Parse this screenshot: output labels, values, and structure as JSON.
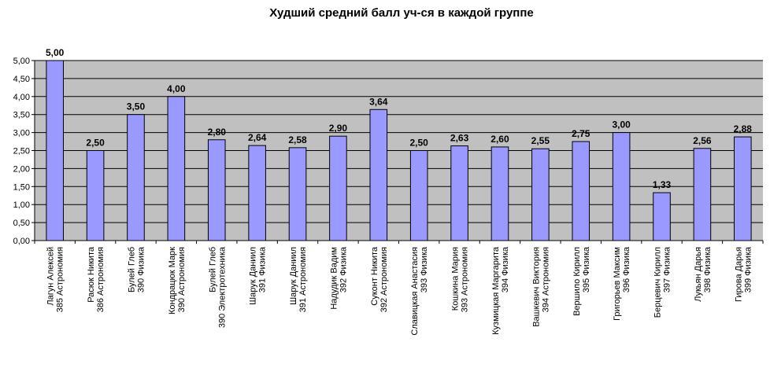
{
  "chart_data": {
    "type": "bar",
    "title": "Худший средний балл уч-ся в каждой группе",
    "xlabel": "",
    "ylabel": "",
    "ylim": [
      0,
      5
    ],
    "yticks": [
      "0,00",
      "0,50",
      "1,00",
      "1,50",
      "2,00",
      "2,50",
      "3,00",
      "3,50",
      "4,00",
      "4,50",
      "5,00"
    ],
    "grid": true,
    "categories": [
      [
        "Лагун Алексей",
        "385 Астрономия"
      ],
      [
        "Расюк Никита",
        "386 Астрономия"
      ],
      [
        "Булей Глеб",
        "390 Физика"
      ],
      [
        "Кондрацюк Марк",
        "390 Астрономия"
      ],
      [
        "Булей Глеб",
        "390 Электротехника"
      ],
      [
        "Шарук Даниил",
        "391 Физика"
      ],
      [
        "Шарук Даниил",
        "391 Астрономия"
      ],
      [
        "Надудик Вадим",
        "392 Физика"
      ],
      [
        "Суконт Никита",
        "392 Астрономия"
      ],
      [
        "Славицкая Анастасия",
        "393 Физика"
      ],
      [
        "Кошкина Мария",
        "393 Астрономия"
      ],
      [
        "Кузмицкая Маргарита",
        "394 Физика"
      ],
      [
        "Вашкевич Виктория",
        "394 Астрономия"
      ],
      [
        "Вершило Кирилл",
        "395 Физика"
      ],
      [
        "Григорьев Максим",
        "396 Физика"
      ],
      [
        "Берцевич Кирилл",
        "397 Физика"
      ],
      [
        "Лукьян Дарья",
        "398 Физика"
      ],
      [
        "Гирова Дарья",
        "399 Физика"
      ]
    ],
    "values": [
      5.0,
      2.5,
      3.5,
      4.0,
      2.8,
      2.64,
      2.58,
      2.9,
      3.64,
      2.5,
      2.63,
      2.6,
      2.55,
      2.75,
      3.0,
      1.33,
      2.56,
      2.88
    ],
    "data_labels": [
      "5,00",
      "2,50",
      "3,50",
      "4,00",
      "2,80",
      "2,64",
      "2,58",
      "2,90",
      "3,64",
      "2,50",
      "2,63",
      "2,60",
      "2,55",
      "2,75",
      "3,00",
      "1,33",
      "2,56",
      "2,88"
    ],
    "colors": {
      "bar": "#9999FF",
      "bar_border": "#000000",
      "plot_background": "#C0C0C0",
      "grid": "#000000"
    }
  }
}
